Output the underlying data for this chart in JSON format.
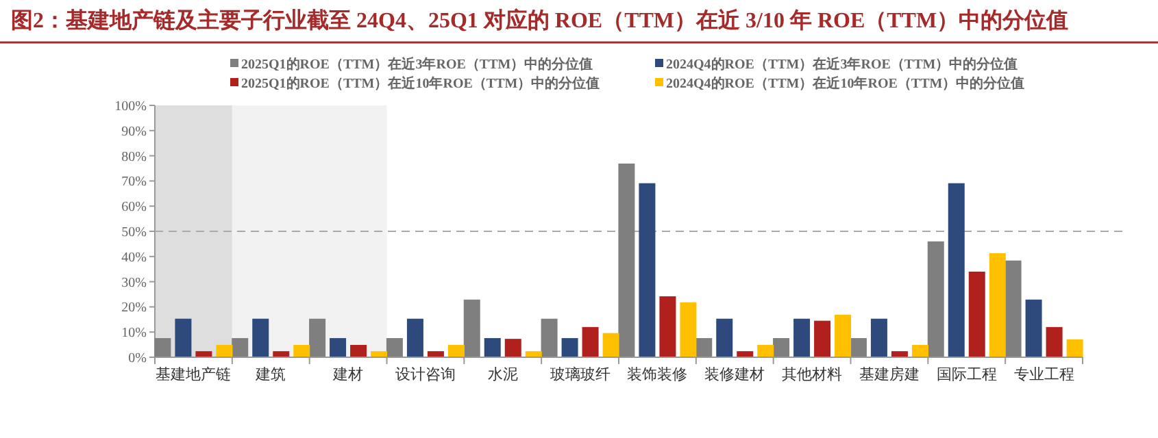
{
  "chart_data": {
    "type": "bar",
    "title": "图2：基建地产链及主要子行业截至 24Q4、25Q1 对应的 ROE（TTM）在近 3/10 年 ROE（TTM）中的分位值",
    "categories": [
      "基建地产链",
      "建筑",
      "建材",
      "设计咨询",
      "水泥",
      "玻璃玻纤",
      "装饰装修",
      "装修建材",
      "其他材料",
      "基建房建",
      "国际工程",
      "专业工程"
    ],
    "series": [
      {
        "name": "2025Q1的ROE（TTM）在近3年ROE（TTM）中的分位值",
        "color": "#7f7f7f",
        "values": [
          7.6,
          7.6,
          15.3,
          7.6,
          22.9,
          15.3,
          76.9,
          7.6,
          7.6,
          7.6,
          46.0,
          38.4
        ]
      },
      {
        "name": "2024Q4的ROE（TTM）在近3年ROE（TTM）中的分位值",
        "color": "#2e4a7d",
        "values": [
          15.3,
          15.3,
          7.6,
          15.3,
          7.6,
          7.6,
          69.1,
          15.3,
          15.3,
          15.3,
          69.1,
          22.9
        ]
      },
      {
        "name": "2025Q1的ROE（TTM）在近10年ROE（TTM）中的分位值",
        "color": "#b0201c",
        "values": [
          2.4,
          2.4,
          4.9,
          2.4,
          7.3,
          12.0,
          24.2,
          2.4,
          14.5,
          2.4,
          34.0,
          12.0
        ]
      },
      {
        "name": "2024Q4的ROE（TTM）在近10年ROE（TTM）中的分位值",
        "color": "#ffc000",
        "values": [
          4.9,
          4.9,
          2.4,
          4.9,
          2.4,
          9.6,
          21.8,
          4.9,
          16.9,
          4.9,
          41.3,
          7.1
        ]
      }
    ],
    "ylim": [
      0,
      100
    ],
    "yticks": [
      {
        "value": 0,
        "label": "0%"
      },
      {
        "value": 10,
        "label": "10%"
      },
      {
        "value": 20,
        "label": "20%"
      },
      {
        "value": 30,
        "label": "30%"
      },
      {
        "value": 40,
        "label": "40%"
      },
      {
        "value": 50,
        "label": "50%"
      },
      {
        "value": 60,
        "label": "60%"
      },
      {
        "value": 70,
        "label": "70%"
      },
      {
        "value": 80,
        "label": "80%"
      },
      {
        "value": 90,
        "label": "90%"
      },
      {
        "value": 100,
        "label": "100%"
      }
    ],
    "ref_lines": [
      {
        "axis": "y",
        "value": 50,
        "color": "#aaaaaa",
        "line_style": "dashed"
      }
    ],
    "bands": [
      {
        "axis": "x",
        "from": "基建地产链",
        "to": "基建地产链",
        "color": "#dedede"
      },
      {
        "axis": "x",
        "from": "建筑",
        "to": "建材",
        "color": "#f2f2f2"
      }
    ],
    "grid": false,
    "legend": "top"
  }
}
